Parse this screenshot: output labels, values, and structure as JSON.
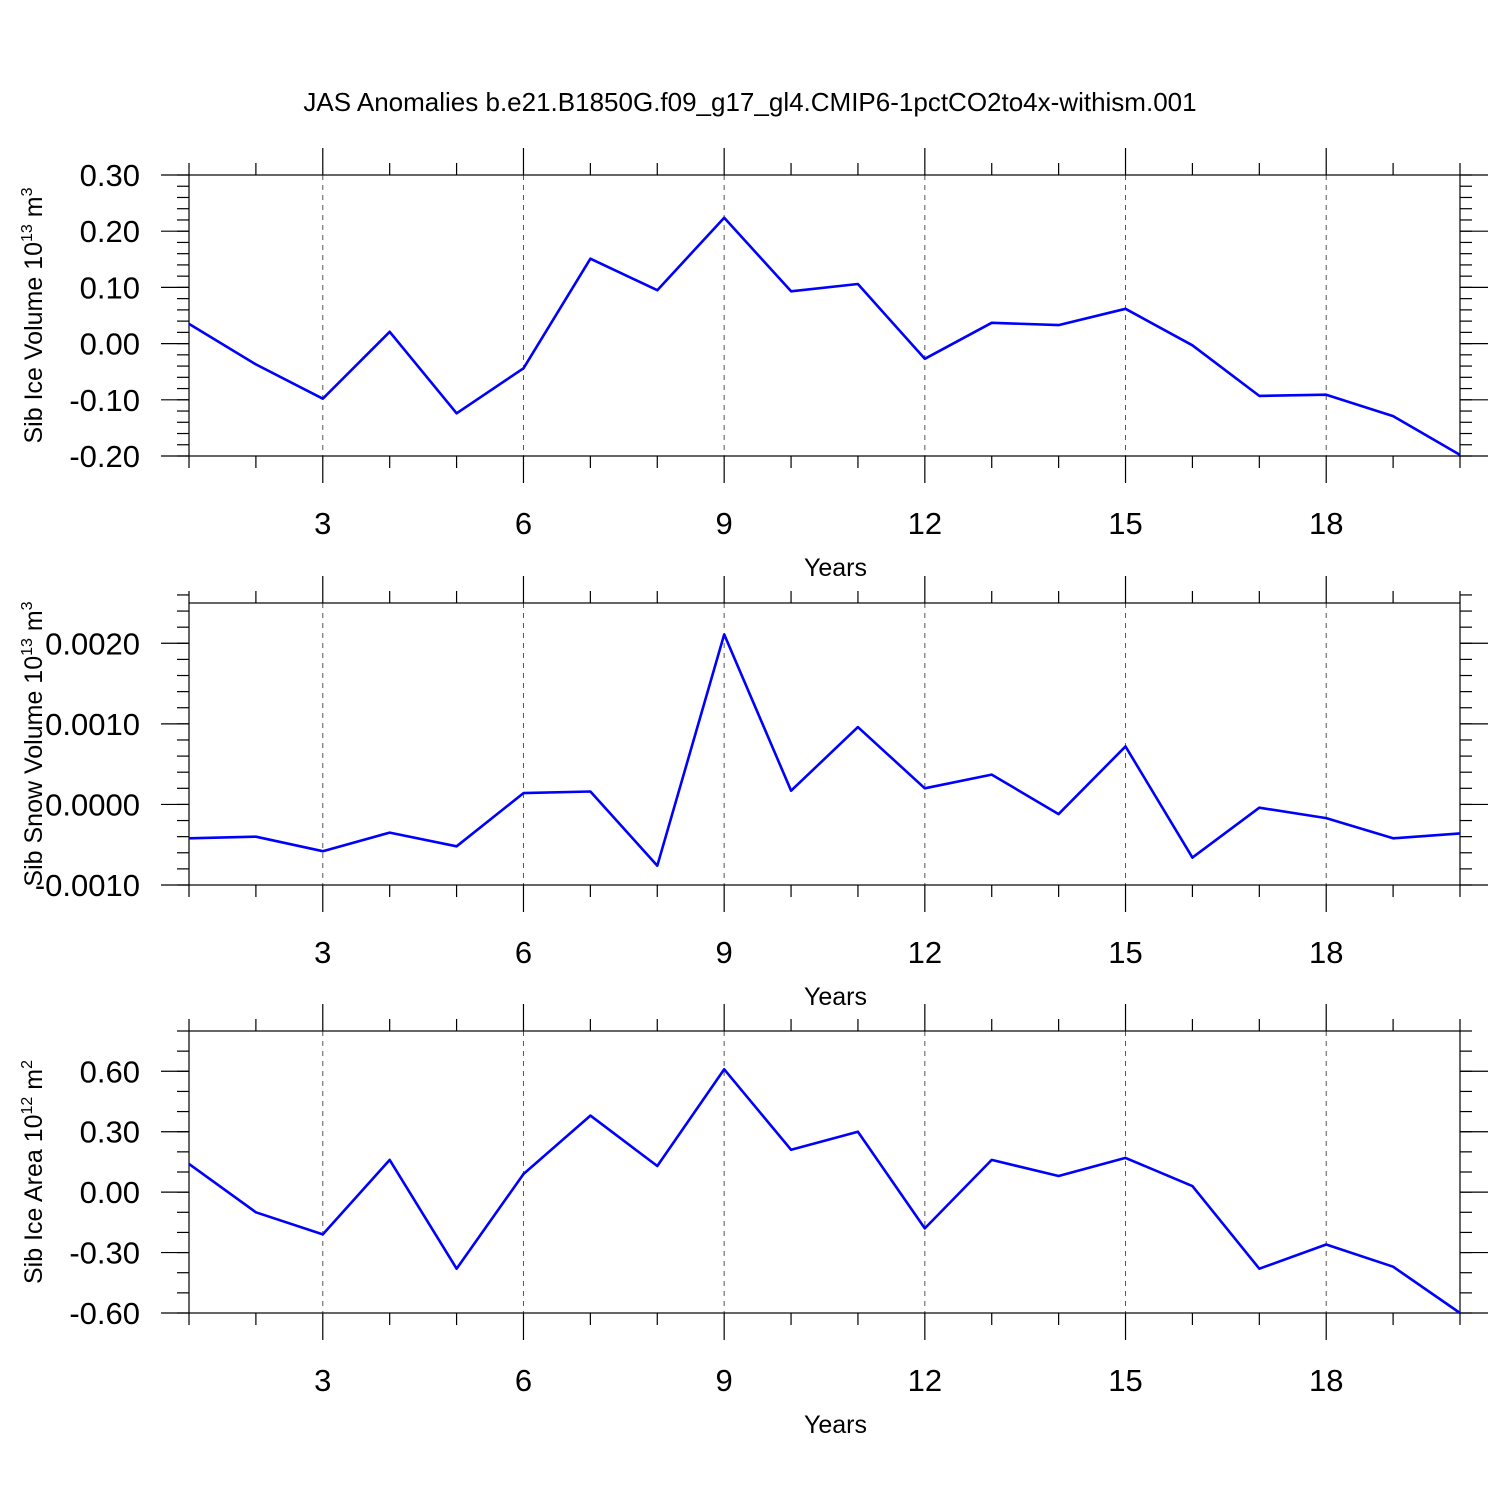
{
  "title": "JAS Anomalies b.e21.B1850G.f09_g17_gl4.CMIP6-1pctCO2to4x-withism.001",
  "colors": {
    "line": "#0000ff",
    "axis": "#000000",
    "grid": "#555555"
  },
  "chart_data": [
    {
      "type": "line",
      "ylabel_main": "Sib Ice Volume 10",
      "ylabel_exp": "13",
      "ylabel_unit": " m",
      "ylabel_unit_exp": "3",
      "xlabel": "Years",
      "xlim": [
        1,
        20
      ],
      "ylim": [
        -0.2,
        0.3
      ],
      "yticks": [
        -0.2,
        -0.1,
        0.0,
        0.1,
        0.2,
        0.3
      ],
      "ytick_labels": [
        "-0.20",
        "-0.10",
        "0.00",
        "0.10",
        "0.20",
        "0.30"
      ],
      "yminor_step": 0.02,
      "xticks": [
        3,
        6,
        9,
        12,
        15,
        18
      ],
      "xtick_labels": [
        "3",
        "6",
        "9",
        "12",
        "15",
        "18"
      ],
      "grid_x": true,
      "x": [
        1,
        2,
        3,
        4,
        5,
        6,
        7,
        8,
        9,
        10,
        11,
        12,
        13,
        14,
        15,
        16,
        17,
        18,
        19,
        20
      ],
      "values": [
        0.035,
        -0.037,
        -0.098,
        0.021,
        -0.124,
        -0.044,
        0.151,
        0.095,
        0.224,
        0.093,
        0.106,
        -0.027,
        0.037,
        0.033,
        0.062,
        -0.003,
        -0.093,
        -0.091,
        -0.129,
        -0.198
      ]
    },
    {
      "type": "line",
      "ylabel_main": "Sib Snow Volume 10",
      "ylabel_exp": "13",
      "ylabel_unit": " m",
      "ylabel_unit_exp": "3",
      "xlabel": "Years",
      "xlim": [
        1,
        20
      ],
      "ylim": [
        -0.001,
        0.0025
      ],
      "yticks": [
        -0.001,
        0.0,
        0.001,
        0.002
      ],
      "ytick_labels": [
        "-0.0010",
        "0.0000",
        "0.0010",
        "0.0020"
      ],
      "yminor_step": 0.0002,
      "xticks": [
        3,
        6,
        9,
        12,
        15,
        18
      ],
      "xtick_labels": [
        "3",
        "6",
        "9",
        "12",
        "15",
        "18"
      ],
      "grid_x": true,
      "x": [
        1,
        2,
        3,
        4,
        5,
        6,
        7,
        8,
        9,
        10,
        11,
        12,
        13,
        14,
        15,
        16,
        17,
        18,
        19,
        20
      ],
      "values": [
        -0.00042,
        -0.0004,
        -0.00058,
        -0.00035,
        -0.00052,
        0.00014,
        0.00016,
        -0.00076,
        0.00211,
        0.00017,
        0.00096,
        0.0002,
        0.00037,
        -0.00012,
        0.00072,
        -0.00066,
        -4e-05,
        -0.00017,
        -0.00042,
        -0.00036
      ]
    },
    {
      "type": "line",
      "ylabel_main": "Sib Ice Area 10",
      "ylabel_exp": "12",
      "ylabel_unit": " m",
      "ylabel_unit_exp": "2",
      "xlabel": "Years",
      "xlim": [
        1,
        20
      ],
      "ylim": [
        -0.6,
        0.8
      ],
      "yticks": [
        -0.6,
        -0.3,
        0.0,
        0.3,
        0.6
      ],
      "ytick_labels": [
        "-0.60",
        "-0.30",
        "0.00",
        "0.30",
        "0.60"
      ],
      "yminor_step": 0.1,
      "xticks": [
        3,
        6,
        9,
        12,
        15,
        18
      ],
      "xtick_labels": [
        "3",
        "6",
        "9",
        "12",
        "15",
        "18"
      ],
      "grid_x": true,
      "x": [
        1,
        2,
        3,
        4,
        5,
        6,
        7,
        8,
        9,
        10,
        11,
        12,
        13,
        14,
        15,
        16,
        17,
        18,
        19,
        20
      ],
      "values": [
        0.14,
        -0.1,
        -0.21,
        0.16,
        -0.38,
        0.09,
        0.38,
        0.13,
        0.61,
        0.21,
        0.3,
        -0.18,
        0.16,
        0.08,
        0.17,
        0.03,
        -0.38,
        -0.26,
        -0.37,
        -0.6
      ]
    }
  ]
}
